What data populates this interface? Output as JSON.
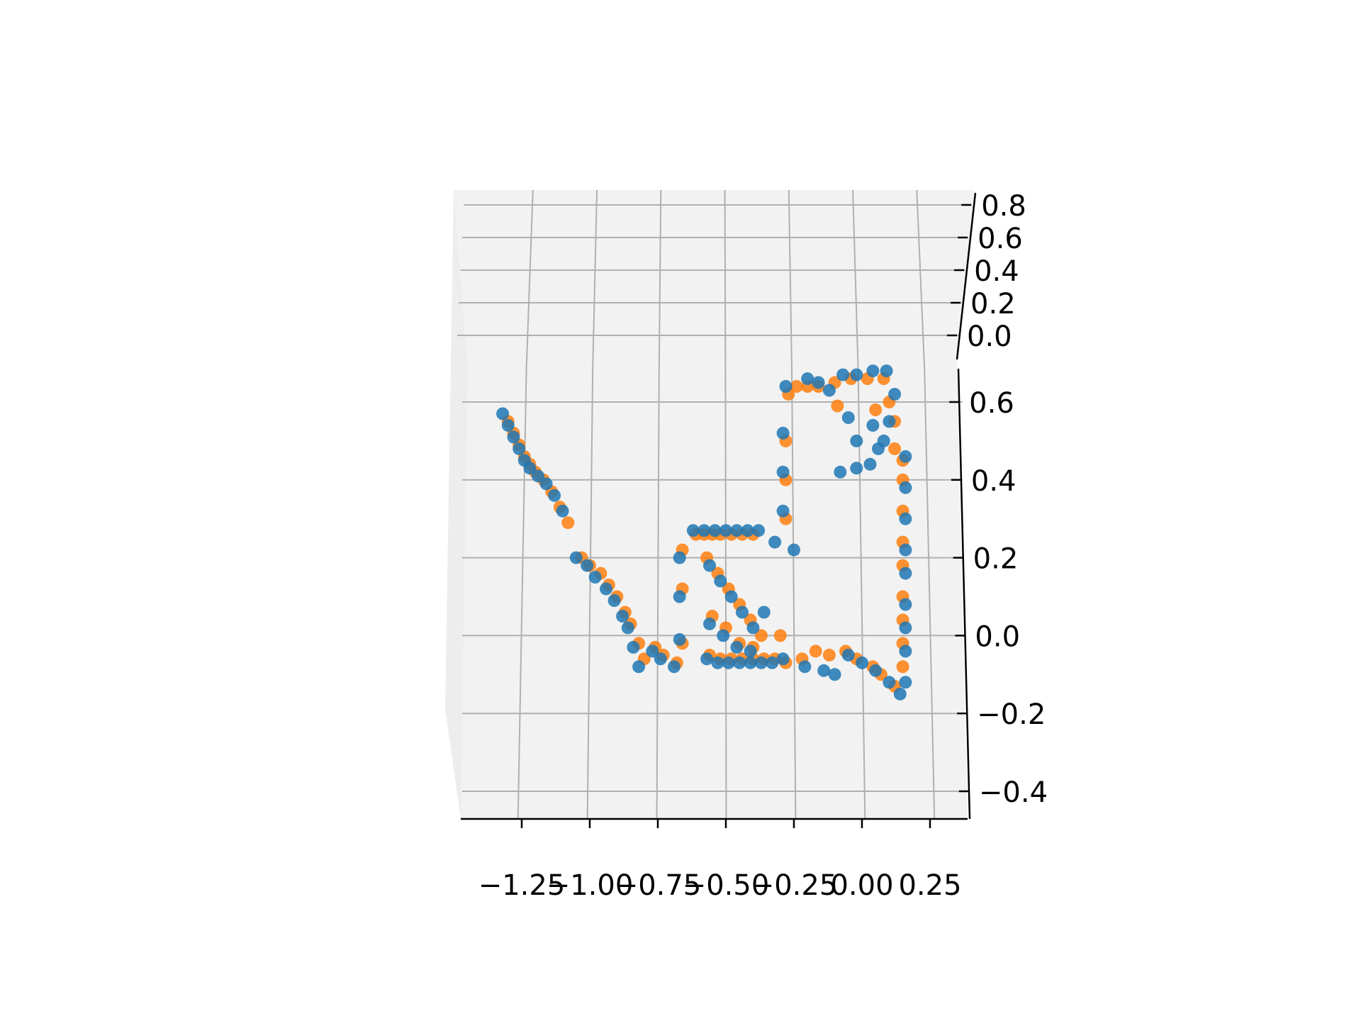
{
  "chart_data": {
    "type": "scatter",
    "projection": "3d",
    "view": "elevated, looking down onto the x-y plane",
    "title": "",
    "xlabel": "",
    "ylabel": "",
    "zlabel": "",
    "grid": true,
    "legend": "none",
    "x_ticks": [
      "−1.25",
      "−1.00",
      "−0.75",
      "−0.50",
      "−0.25",
      "0.00",
      "0.25"
    ],
    "x_tick_values": [
      -1.25,
      -1.0,
      -0.75,
      -0.5,
      -0.25,
      0.0,
      0.25
    ],
    "y_ticks": [
      "−0.4",
      "−0.2",
      "0.0",
      "0.2",
      "0.4",
      "0.6"
    ],
    "y_tick_values": [
      -0.4,
      -0.2,
      0.0,
      0.2,
      0.4,
      0.6
    ],
    "z_ticks": [
      "0.0",
      "0.2",
      "0.4",
      "0.6",
      "0.8"
    ],
    "z_tick_values": [
      0.0,
      0.2,
      0.4,
      0.6,
      0.8
    ],
    "xlim": [
      -1.45,
      0.4
    ],
    "ylim": [
      -0.45,
      0.7
    ],
    "zlim": [
      0.0,
      0.85
    ],
    "colors": {
      "series_1": "#ff7f0e",
      "series_2": "#1f77b4",
      "pane": "#f2f2f2",
      "grid": "#b0b0b0"
    },
    "series": [
      {
        "color": "#ff7f0e",
        "points": [
          [
            -1.3,
            0.55
          ],
          [
            -1.28,
            0.52
          ],
          [
            -1.26,
            0.49
          ],
          [
            -1.24,
            0.46
          ],
          [
            -1.22,
            0.44
          ],
          [
            -1.2,
            0.42
          ],
          [
            -1.17,
            0.4
          ],
          [
            -1.14,
            0.37
          ],
          [
            -1.11,
            0.33
          ],
          [
            -1.08,
            0.29
          ],
          [
            -1.03,
            0.2
          ],
          [
            -1.0,
            0.18
          ],
          [
            -0.96,
            0.16
          ],
          [
            -0.93,
            0.13
          ],
          [
            -0.9,
            0.1
          ],
          [
            -0.87,
            0.06
          ],
          [
            -0.85,
            0.03
          ],
          [
            -0.82,
            -0.02
          ],
          [
            -0.8,
            -0.06
          ],
          [
            -0.76,
            -0.03
          ],
          [
            -0.73,
            -0.05
          ],
          [
            -0.68,
            -0.07
          ],
          [
            -0.66,
            -0.02
          ],
          [
            -0.66,
            0.12
          ],
          [
            -0.66,
            0.22
          ],
          [
            -0.61,
            0.26
          ],
          [
            -0.58,
            0.26
          ],
          [
            -0.55,
            0.26
          ],
          [
            -0.52,
            0.26
          ],
          [
            -0.48,
            0.26
          ],
          [
            -0.44,
            0.26
          ],
          [
            -0.4,
            0.26
          ],
          [
            -0.57,
            0.2
          ],
          [
            -0.53,
            0.16
          ],
          [
            -0.49,
            0.12
          ],
          [
            -0.45,
            0.08
          ],
          [
            -0.41,
            0.04
          ],
          [
            -0.37,
            0.0
          ],
          [
            -0.55,
            0.05
          ],
          [
            -0.5,
            0.02
          ],
          [
            -0.45,
            -0.02
          ],
          [
            -0.4,
            -0.03
          ],
          [
            -0.56,
            -0.05
          ],
          [
            -0.52,
            -0.06
          ],
          [
            -0.48,
            -0.06
          ],
          [
            -0.44,
            -0.06
          ],
          [
            -0.4,
            -0.06
          ],
          [
            -0.36,
            -0.06
          ],
          [
            -0.32,
            -0.06
          ],
          [
            -0.28,
            -0.07
          ],
          [
            -0.22,
            -0.06
          ],
          [
            -0.17,
            -0.04
          ],
          [
            -0.12,
            -0.05
          ],
          [
            -0.06,
            -0.04
          ],
          [
            -0.02,
            -0.06
          ],
          [
            0.04,
            -0.08
          ],
          [
            0.07,
            -0.1
          ],
          [
            0.12,
            -0.13
          ],
          [
            -0.28,
            0.3
          ],
          [
            -0.28,
            0.4
          ],
          [
            -0.28,
            0.5
          ],
          [
            -0.27,
            0.62
          ],
          [
            -0.24,
            0.64
          ],
          [
            -0.2,
            0.64
          ],
          [
            -0.16,
            0.64
          ],
          [
            -0.1,
            0.65
          ],
          [
            -0.04,
            0.66
          ],
          [
            0.02,
            0.66
          ],
          [
            0.08,
            0.66
          ],
          [
            0.15,
            0.45
          ],
          [
            0.15,
            0.4
          ],
          [
            0.15,
            0.32
          ],
          [
            0.15,
            0.24
          ],
          [
            0.15,
            0.18
          ],
          [
            0.15,
            0.1
          ],
          [
            0.15,
            0.04
          ],
          [
            0.15,
            -0.02
          ],
          [
            0.15,
            -0.08
          ],
          [
            0.12,
            0.55
          ],
          [
            0.12,
            0.48
          ],
          [
            0.1,
            0.6
          ],
          [
            0.05,
            0.58
          ],
          [
            -0.09,
            0.59
          ],
          [
            -0.3,
            0.0
          ]
        ]
      },
      {
        "color": "#1f77b4",
        "points": [
          [
            -1.32,
            0.57
          ],
          [
            -1.3,
            0.54
          ],
          [
            -1.28,
            0.51
          ],
          [
            -1.26,
            0.48
          ],
          [
            -1.24,
            0.45
          ],
          [
            -1.22,
            0.43
          ],
          [
            -1.19,
            0.41
          ],
          [
            -1.16,
            0.39
          ],
          [
            -1.13,
            0.36
          ],
          [
            -1.1,
            0.32
          ],
          [
            -1.05,
            0.2
          ],
          [
            -1.01,
            0.18
          ],
          [
            -0.98,
            0.15
          ],
          [
            -0.94,
            0.12
          ],
          [
            -0.91,
            0.09
          ],
          [
            -0.88,
            0.05
          ],
          [
            -0.86,
            0.02
          ],
          [
            -0.84,
            -0.03
          ],
          [
            -0.82,
            -0.08
          ],
          [
            -0.77,
            -0.04
          ],
          [
            -0.74,
            -0.06
          ],
          [
            -0.69,
            -0.08
          ],
          [
            -0.67,
            -0.01
          ],
          [
            -0.67,
            0.1
          ],
          [
            -0.67,
            0.2
          ],
          [
            -0.62,
            0.27
          ],
          [
            -0.58,
            0.27
          ],
          [
            -0.54,
            0.27
          ],
          [
            -0.5,
            0.27
          ],
          [
            -0.46,
            0.27
          ],
          [
            -0.42,
            0.27
          ],
          [
            -0.38,
            0.27
          ],
          [
            -0.56,
            0.18
          ],
          [
            -0.52,
            0.14
          ],
          [
            -0.48,
            0.1
          ],
          [
            -0.44,
            0.06
          ],
          [
            -0.4,
            0.02
          ],
          [
            -0.36,
            0.06
          ],
          [
            -0.56,
            0.03
          ],
          [
            -0.51,
            0.0
          ],
          [
            -0.46,
            -0.03
          ],
          [
            -0.41,
            -0.04
          ],
          [
            -0.57,
            -0.06
          ],
          [
            -0.53,
            -0.07
          ],
          [
            -0.49,
            -0.07
          ],
          [
            -0.45,
            -0.07
          ],
          [
            -0.41,
            -0.07
          ],
          [
            -0.37,
            -0.07
          ],
          [
            -0.33,
            -0.07
          ],
          [
            -0.29,
            -0.06
          ],
          [
            -0.21,
            -0.08
          ],
          [
            -0.14,
            -0.09
          ],
          [
            -0.1,
            -0.1
          ],
          [
            -0.05,
            -0.05
          ],
          [
            0.0,
            -0.07
          ],
          [
            0.05,
            -0.09
          ],
          [
            0.1,
            -0.12
          ],
          [
            0.14,
            -0.15
          ],
          [
            -0.29,
            0.32
          ],
          [
            -0.29,
            0.42
          ],
          [
            -0.29,
            0.52
          ],
          [
            -0.28,
            0.64
          ],
          [
            -0.2,
            0.66
          ],
          [
            -0.16,
            0.65
          ],
          [
            -0.12,
            0.63
          ],
          [
            -0.07,
            0.67
          ],
          [
            -0.02,
            0.67
          ],
          [
            0.04,
            0.68
          ],
          [
            0.09,
            0.68
          ],
          [
            0.16,
            0.46
          ],
          [
            0.16,
            0.38
          ],
          [
            0.16,
            0.3
          ],
          [
            0.16,
            0.22
          ],
          [
            0.16,
            0.16
          ],
          [
            0.16,
            0.08
          ],
          [
            0.16,
            0.02
          ],
          [
            0.16,
            -0.04
          ],
          [
            0.16,
            -0.12
          ],
          [
            0.12,
            0.62
          ],
          [
            0.1,
            0.55
          ],
          [
            0.08,
            0.5
          ],
          [
            0.04,
            0.54
          ],
          [
            -0.05,
            0.56
          ],
          [
            -0.08,
            0.42
          ],
          [
            -0.02,
            0.43
          ],
          [
            0.03,
            0.44
          ],
          [
            0.06,
            0.48
          ],
          [
            -0.02,
            0.5
          ],
          [
            -0.32,
            0.24
          ],
          [
            -0.25,
            0.22
          ]
        ]
      }
    ]
  }
}
